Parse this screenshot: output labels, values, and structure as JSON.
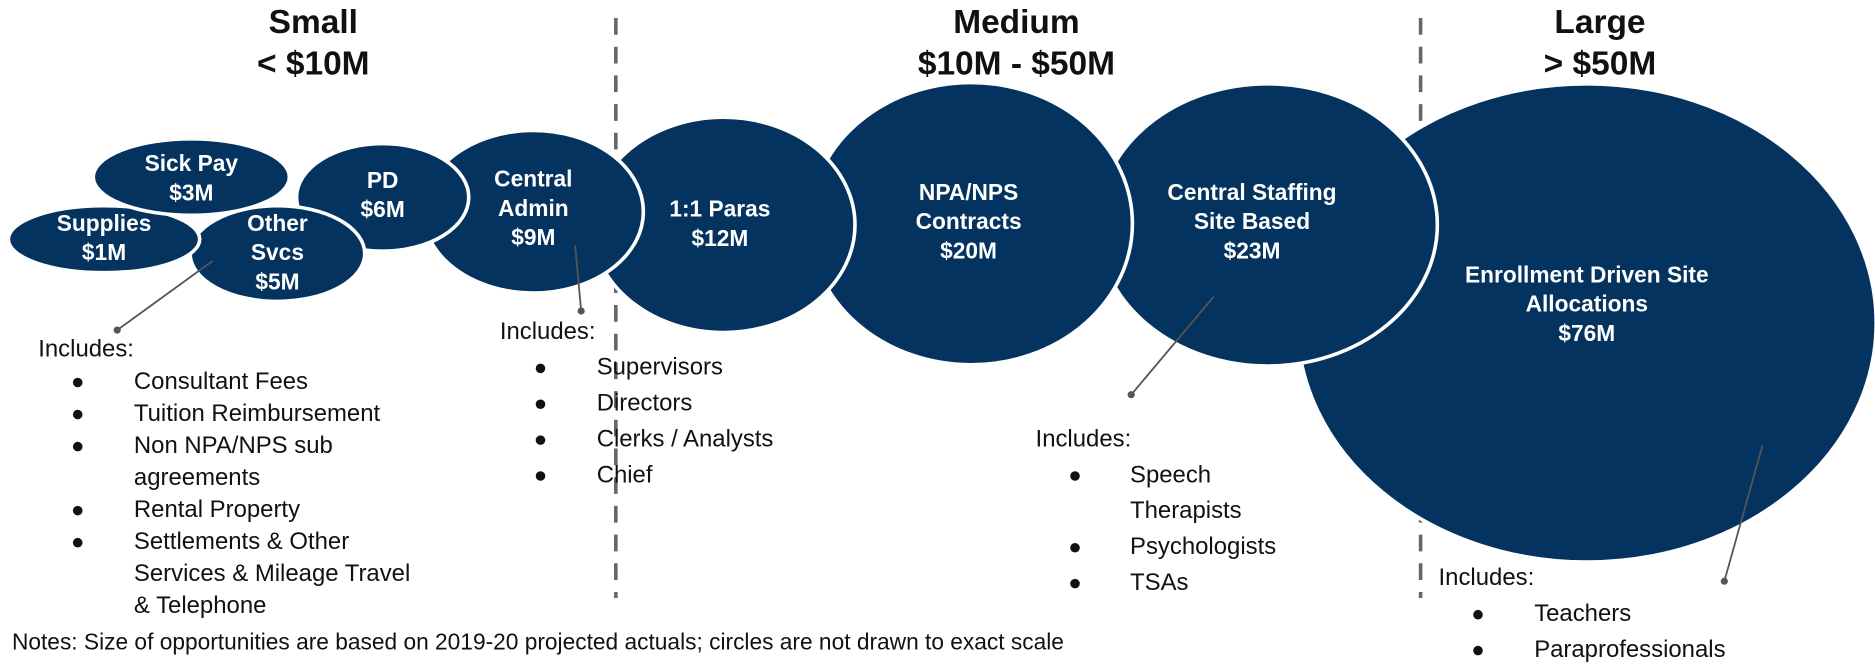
{
  "sections": [
    {
      "title": "Small",
      "range": "< $10M"
    },
    {
      "title": "Medium",
      "range": "$10M - $50M"
    },
    {
      "title": "Large",
      "range": "> $50M"
    }
  ],
  "bubbles": [
    {
      "lines": [
        "Sick Pay"
      ],
      "amount": "$3M"
    },
    {
      "lines": [
        "Supplies"
      ],
      "amount": "$1M"
    },
    {
      "lines": [
        "Other",
        "Svcs"
      ],
      "amount": "$5M"
    },
    {
      "lines": [
        "PD"
      ],
      "amount": "$6M"
    },
    {
      "lines": [
        "Central",
        "Admin"
      ],
      "amount": "$9M"
    },
    {
      "lines": [
        "1:1 Paras"
      ],
      "amount": "$12M"
    },
    {
      "lines": [
        "NPA/NPS",
        "Contracts"
      ],
      "amount": "$20M"
    },
    {
      "lines": [
        "Central Staffing",
        "Site Based"
      ],
      "amount": "$23M"
    },
    {
      "lines": [
        "Enrollment Driven Site",
        "Allocations"
      ],
      "amount": "$76M"
    }
  ],
  "includes": [
    {
      "heading": "Includes:",
      "items": [
        [
          "Consultant Fees"
        ],
        [
          "Tuition Reimbursement"
        ],
        [
          "Non NPA/NPS sub",
          "agreements"
        ],
        [
          "Rental Property"
        ],
        [
          "Settlements & Other",
          "Services & Mileage Travel",
          "& Telephone"
        ]
      ]
    },
    {
      "heading": "Includes:",
      "items": [
        [
          "Supervisors"
        ],
        [
          "Directors"
        ],
        [
          "Clerks / Analysts"
        ],
        [
          "Chief"
        ]
      ]
    },
    {
      "heading": "Includes:",
      "items": [
        [
          "Speech",
          "Therapists"
        ],
        [
          "Psychologists"
        ],
        [
          "TSAs"
        ]
      ]
    },
    {
      "heading": "Includes:",
      "items": [
        [
          "Teachers"
        ],
        [
          "Paraprofessionals"
        ]
      ]
    }
  ],
  "notes": "Notes: Size of opportunities are based on 2019-20 projected actuals; circles are not drawn to exact scale"
}
